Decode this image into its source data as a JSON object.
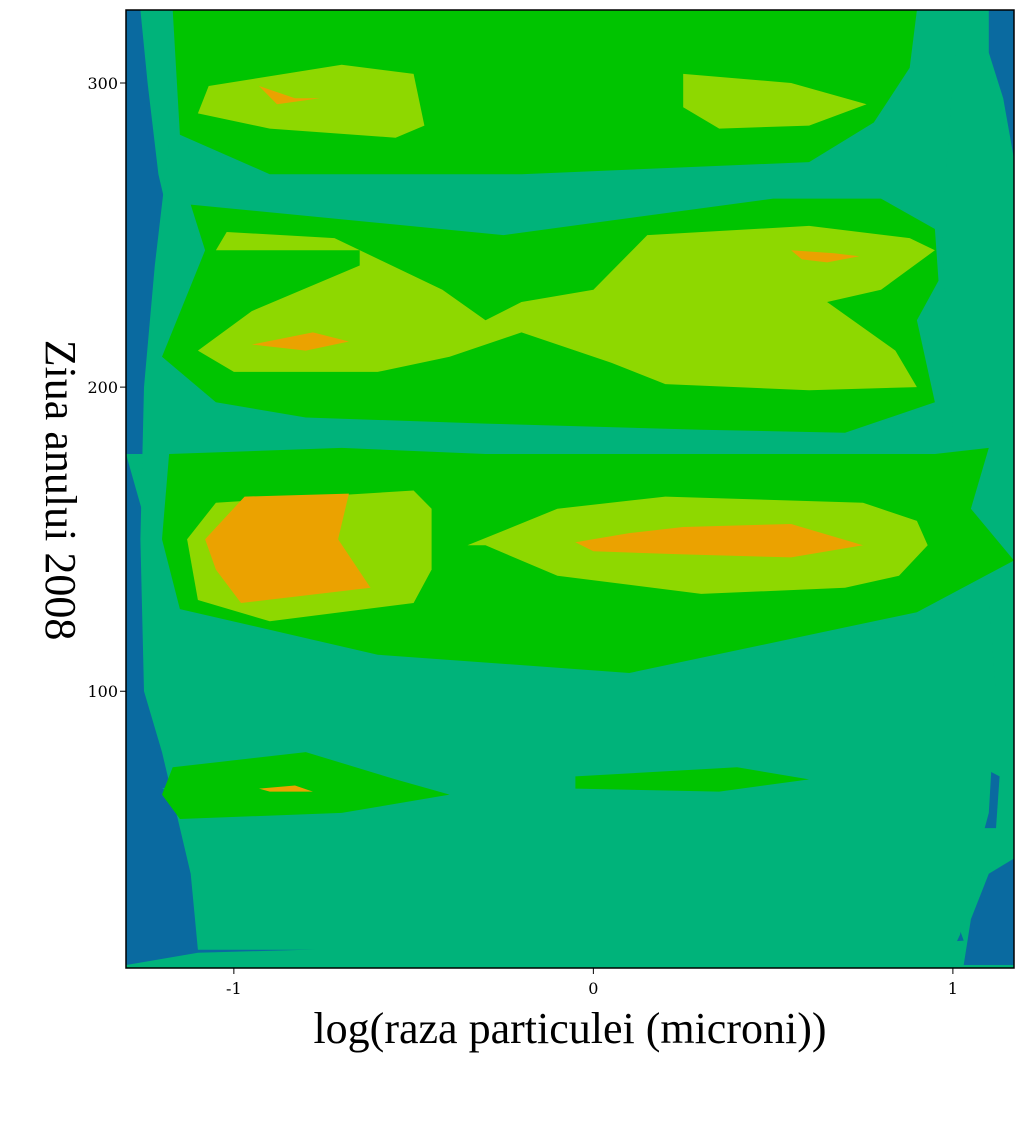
{
  "chart_data": {
    "type": "heatmap",
    "subtype": "filled-contour",
    "title": "",
    "xlabel": "log(raza particulei (microni))",
    "ylabel": "Ziua anului 2008",
    "xlim": [
      -1.3,
      1.17
    ],
    "ylim": [
      9,
      324
    ],
    "x_ticks": [
      -1,
      0,
      1
    ],
    "x_tick_labels": [
      "-1",
      "0",
      "1"
    ],
    "y_ticks": [
      100,
      200,
      300
    ],
    "y_tick_labels": [
      "100",
      "200",
      "300"
    ],
    "grid": false,
    "legend": "none",
    "levels": [
      {
        "level": 0,
        "color": "#1d3c8c"
      },
      {
        "level": 1,
        "color": "#0a6aa0"
      },
      {
        "level": 2,
        "color": "#00b37a"
      },
      {
        "level": 3,
        "color": "#00c400"
      },
      {
        "level": 4,
        "color": "#8ed800"
      },
      {
        "level": 5,
        "color": "#eba200"
      }
    ],
    "regions": [
      {
        "level": 2,
        "points": [
          [
            -1.15,
            324
          ],
          [
            1.02,
            324
          ],
          [
            1.0,
            300
          ],
          [
            0.98,
            270
          ],
          [
            0.97,
            250
          ],
          [
            0.98,
            228
          ],
          [
            1.0,
            185
          ],
          [
            1.1,
            130
          ],
          [
            1.12,
            100
          ],
          [
            1.1,
            60
          ],
          [
            1.05,
            38
          ],
          [
            1.02,
            20
          ],
          [
            1.0,
            15
          ],
          [
            -1.1,
            15
          ],
          [
            -1.12,
            40
          ],
          [
            -1.2,
            80
          ],
          [
            -1.25,
            100
          ],
          [
            -1.26,
            150
          ],
          [
            -1.25,
            200
          ],
          [
            -1.22,
            240
          ],
          [
            -1.18,
            280
          ]
        ]
      },
      {
        "level": 1,
        "points": [
          [
            -1.3,
            324
          ],
          [
            -1.26,
            324
          ],
          [
            -1.24,
            300
          ],
          [
            -1.21,
            270
          ],
          [
            -1.17,
            250
          ],
          [
            -1.15,
            240
          ],
          [
            -1.2,
            220
          ],
          [
            -1.12,
            198
          ],
          [
            -1.25,
            178
          ],
          [
            -1.3,
            178
          ]
        ]
      },
      {
        "level": 1,
        "points": [
          [
            -1.3,
            178
          ],
          [
            -1.24,
            153
          ],
          [
            -1.2,
            122
          ],
          [
            -0.9,
            112
          ],
          [
            -0.25,
            87
          ],
          [
            -0.7,
            81
          ],
          [
            -1.2,
            68
          ],
          [
            -0.8,
            55
          ],
          [
            -0.25,
            50
          ],
          [
            -0.75,
            38
          ],
          [
            0.9,
            32
          ],
          [
            1.0,
            28
          ],
          [
            1.03,
            18
          ],
          [
            0.8,
            16
          ],
          [
            -0.5,
            16
          ],
          [
            -1.1,
            14
          ],
          [
            -1.3,
            10
          ]
        ]
      },
      {
        "level": 1,
        "points": [
          [
            1.1,
            324
          ],
          [
            1.17,
            324
          ],
          [
            1.17,
            275
          ],
          [
            1.14,
            295
          ],
          [
            1.1,
            310
          ]
        ]
      },
      {
        "level": 1,
        "points": [
          [
            1.17,
            10
          ],
          [
            1.03,
            10
          ],
          [
            1.05,
            25
          ],
          [
            1.1,
            40
          ],
          [
            1.17,
            45
          ]
        ]
      },
      {
        "level": 1,
        "points": [
          [
            0.95,
            70
          ],
          [
            1.02,
            55
          ],
          [
            1.12,
            55
          ],
          [
            1.13,
            72
          ],
          [
            1.0,
            80
          ]
        ]
      },
      {
        "level": 0,
        "points": [
          [
            -1.3,
            275
          ],
          [
            -1.27,
            270
          ],
          [
            -1.3,
            262
          ]
        ]
      },
      {
        "level": 0,
        "points": [
          [
            -1.3,
            68
          ],
          [
            -1.27,
            64
          ],
          [
            -1.3,
            60
          ]
        ]
      },
      {
        "level": 3,
        "points": [
          [
            -1.17,
            324
          ],
          [
            0.9,
            324
          ],
          [
            0.88,
            305
          ],
          [
            0.78,
            287
          ],
          [
            0.6,
            274
          ],
          [
            -0.2,
            270
          ],
          [
            -0.9,
            270
          ],
          [
            -1.15,
            283
          ]
        ]
      },
      {
        "level": 3,
        "points": [
          [
            -1.12,
            260
          ],
          [
            -0.25,
            250
          ],
          [
            0.5,
            262
          ],
          [
            0.8,
            262
          ],
          [
            0.95,
            252
          ],
          [
            0.96,
            235
          ],
          [
            0.9,
            222
          ],
          [
            0.95,
            195
          ],
          [
            0.7,
            185
          ],
          [
            0.3,
            186
          ],
          [
            -0.3,
            188
          ],
          [
            -0.8,
            190
          ],
          [
            -1.05,
            195
          ],
          [
            -1.2,
            210
          ],
          [
            -1.08,
            245
          ]
        ]
      },
      {
        "level": 3,
        "points": [
          [
            -1.18,
            178
          ],
          [
            -0.7,
            180
          ],
          [
            -0.3,
            178
          ],
          [
            0.2,
            178
          ],
          [
            0.95,
            178
          ],
          [
            1.1,
            180
          ],
          [
            1.05,
            160
          ],
          [
            1.17,
            143
          ],
          [
            0.9,
            126
          ],
          [
            0.1,
            106
          ],
          [
            -0.6,
            112
          ],
          [
            -1.15,
            127
          ],
          [
            -1.2,
            150
          ]
        ]
      },
      {
        "level": 3,
        "points": [
          [
            -1.17,
            75
          ],
          [
            -0.8,
            80
          ],
          [
            -0.55,
            71
          ],
          [
            -0.4,
            66
          ],
          [
            -0.7,
            60
          ],
          [
            -1.15,
            58
          ],
          [
            -1.2,
            66
          ]
        ]
      },
      {
        "level": 3,
        "points": [
          [
            -0.05,
            72
          ],
          [
            0.4,
            75
          ],
          [
            0.6,
            71
          ],
          [
            0.35,
            67
          ],
          [
            -0.05,
            68
          ]
        ]
      },
      {
        "level": 4,
        "points": [
          [
            -1.07,
            299
          ],
          [
            -0.7,
            306
          ],
          [
            -0.5,
            303
          ],
          [
            -0.47,
            286
          ],
          [
            -0.55,
            282
          ],
          [
            -0.9,
            285
          ],
          [
            -1.1,
            290
          ]
        ]
      },
      {
        "level": 4,
        "points": [
          [
            0.25,
            303
          ],
          [
            0.55,
            300
          ],
          [
            0.76,
            293
          ],
          [
            0.6,
            286
          ],
          [
            0.35,
            285
          ],
          [
            0.25,
            292
          ]
        ]
      },
      {
        "level": 4,
        "points": [
          [
            -1.02,
            251
          ],
          [
            -0.72,
            249
          ],
          [
            -0.42,
            232
          ],
          [
            -0.3,
            222
          ],
          [
            -0.2,
            228
          ],
          [
            0.0,
            232
          ],
          [
            0.15,
            250
          ],
          [
            0.6,
            253
          ],
          [
            0.88,
            249
          ],
          [
            0.95,
            245
          ],
          [
            0.8,
            232
          ],
          [
            0.65,
            228
          ],
          [
            0.84,
            212
          ],
          [
            0.9,
            200
          ],
          [
            0.6,
            199
          ],
          [
            0.2,
            201
          ],
          [
            0.05,
            208
          ],
          [
            -0.2,
            218
          ],
          [
            -0.4,
            210
          ],
          [
            -0.6,
            205
          ],
          [
            -1.0,
            205
          ],
          [
            -1.1,
            212
          ],
          [
            -0.95,
            225
          ],
          [
            -0.65,
            240
          ],
          [
            -0.65,
            245
          ],
          [
            -0.95,
            245
          ],
          [
            -1.05,
            245
          ]
        ]
      },
      {
        "level": 4,
        "points": [
          [
            -1.13,
            150
          ],
          [
            -1.05,
            162
          ],
          [
            -0.5,
            166
          ],
          [
            -0.45,
            160
          ],
          [
            -0.45,
            140
          ],
          [
            -0.5,
            129
          ],
          [
            -0.9,
            123
          ],
          [
            -1.1,
            130
          ]
        ]
      },
      {
        "level": 4,
        "points": [
          [
            -0.35,
            148
          ],
          [
            -0.1,
            160
          ],
          [
            0.2,
            164
          ],
          [
            0.75,
            162
          ],
          [
            0.9,
            156
          ],
          [
            0.93,
            148
          ],
          [
            0.85,
            138
          ],
          [
            0.7,
            134
          ],
          [
            0.3,
            132
          ],
          [
            -0.1,
            138
          ],
          [
            -0.3,
            148
          ]
        ]
      },
      {
        "level": 5,
        "points": [
          [
            -0.93,
            299
          ],
          [
            -0.83,
            295
          ],
          [
            -0.76,
            295
          ],
          [
            -0.88,
            293
          ]
        ]
      },
      {
        "level": 5,
        "points": [
          [
            -0.95,
            214
          ],
          [
            -0.78,
            218
          ],
          [
            -0.68,
            215
          ],
          [
            -0.8,
            212
          ]
        ]
      },
      {
        "level": 5,
        "points": [
          [
            0.55,
            245
          ],
          [
            0.67,
            244
          ],
          [
            0.74,
            243
          ],
          [
            0.65,
            241
          ],
          [
            0.58,
            242
          ]
        ]
      },
      {
        "level": 5,
        "points": [
          [
            -1.08,
            150
          ],
          [
            -0.97,
            164
          ],
          [
            -0.68,
            165
          ],
          [
            -0.71,
            150
          ],
          [
            -0.62,
            134
          ],
          [
            -0.98,
            129
          ],
          [
            -1.05,
            140
          ]
        ]
      },
      {
        "level": 5,
        "points": [
          [
            -0.05,
            149
          ],
          [
            0.1,
            152
          ],
          [
            0.25,
            154
          ],
          [
            0.55,
            155
          ],
          [
            0.75,
            148
          ],
          [
            0.55,
            144
          ],
          [
            0.25,
            145
          ],
          [
            0.0,
            146
          ]
        ]
      },
      {
        "level": 5,
        "points": [
          [
            -0.93,
            68
          ],
          [
            -0.83,
            69
          ],
          [
            -0.78,
            67
          ],
          [
            -0.9,
            67
          ]
        ]
      }
    ]
  }
}
